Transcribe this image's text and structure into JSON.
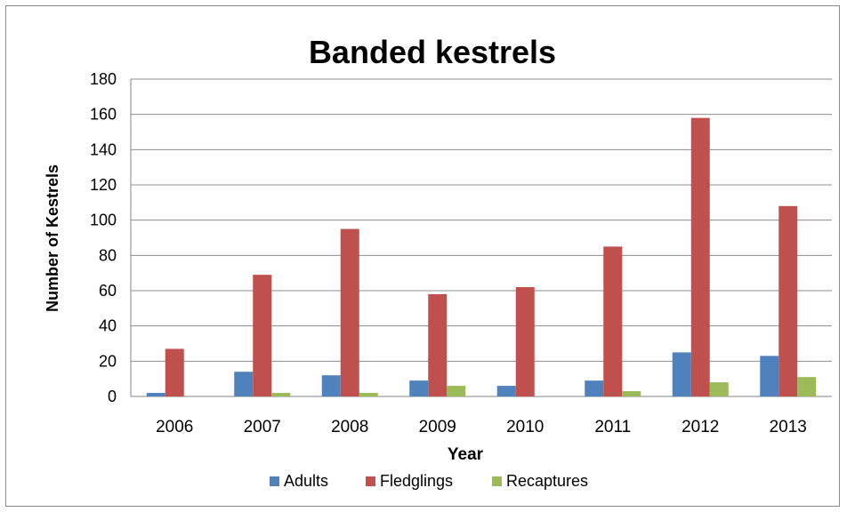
{
  "chart_data": {
    "type": "bar",
    "title": "Banded kestrels",
    "xlabel": "Year",
    "ylabel": "Number of Kestrels",
    "categories": [
      "2006",
      "2007",
      "2008",
      "2009",
      "2010",
      "2011",
      "2012",
      "2013"
    ],
    "series": [
      {
        "name": "Adults",
        "color": "#4f81bd",
        "values": [
          2,
          14,
          12,
          9,
          6,
          9,
          25,
          23
        ]
      },
      {
        "name": "Fledglings",
        "color": "#c0504d",
        "values": [
          27,
          69,
          95,
          58,
          62,
          85,
          158,
          108
        ]
      },
      {
        "name": "Recaptures",
        "color": "#9bbb59",
        "values": [
          0,
          2,
          2,
          6,
          0,
          3,
          8,
          11
        ]
      }
    ],
    "ylim": [
      0,
      180
    ],
    "yticks": [
      "0",
      "20",
      "40",
      "60",
      "80",
      "100",
      "120",
      "140",
      "160",
      "180"
    ],
    "grid": true,
    "legend_position": "bottom"
  }
}
